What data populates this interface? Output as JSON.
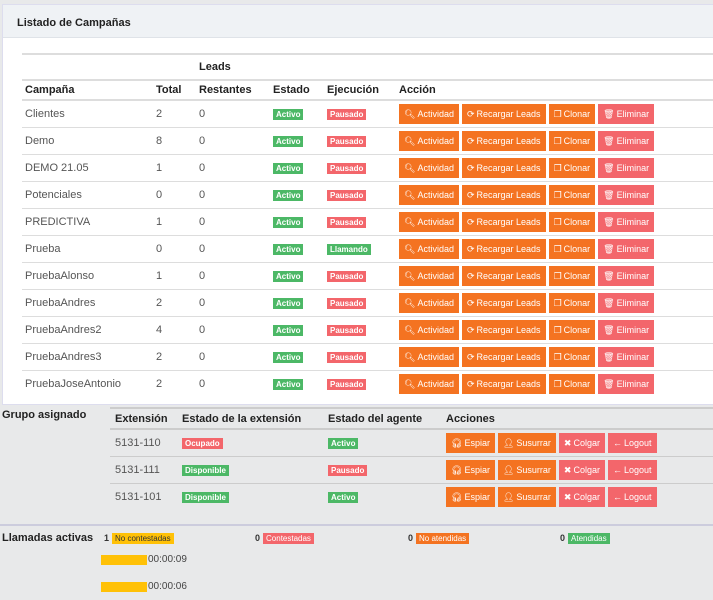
{
  "panel": {
    "title": "Listado de Campañas"
  },
  "campaigns": {
    "group_header": "Leads",
    "headers": [
      "Campaña",
      "Total",
      "Restantes",
      "Estado",
      "Ejecución",
      "Acción"
    ],
    "actions": [
      "Actividad",
      "Recargar Leads",
      "Clonar",
      "Eliminar"
    ],
    "rows": [
      {
        "name": "Clientes",
        "total": "2",
        "rest": "0",
        "estado": "Activo",
        "ejec": "Pausado"
      },
      {
        "name": "Demo",
        "total": "8",
        "rest": "0",
        "estado": "Activo",
        "ejec": "Pausado"
      },
      {
        "name": "DEMO 21.05",
        "total": "1",
        "rest": "0",
        "estado": "Activo",
        "ejec": "Pausado"
      },
      {
        "name": "Potenciales",
        "total": "0",
        "rest": "0",
        "estado": "Activo",
        "ejec": "Pausado"
      },
      {
        "name": "PREDICTIVA",
        "total": "1",
        "rest": "0",
        "estado": "Activo",
        "ejec": "Pausado"
      },
      {
        "name": "Prueba",
        "total": "0",
        "rest": "0",
        "estado": "Activo",
        "ejec": "Llamando"
      },
      {
        "name": "PruebaAlonso",
        "total": "1",
        "rest": "0",
        "estado": "Activo",
        "ejec": "Pausado"
      },
      {
        "name": "PruebaAndres",
        "total": "2",
        "rest": "0",
        "estado": "Activo",
        "ejec": "Pausado"
      },
      {
        "name": "PruebaAndres2",
        "total": "4",
        "rest": "0",
        "estado": "Activo",
        "ejec": "Pausado"
      },
      {
        "name": "PruebaAndres3",
        "total": "2",
        "rest": "0",
        "estado": "Activo",
        "ejec": "Pausado"
      },
      {
        "name": "PruebaJoseAntonio",
        "total": "2",
        "rest": "0",
        "estado": "Activo",
        "ejec": "Pausado"
      }
    ]
  },
  "group": {
    "label": "Grupo asignado",
    "headers": [
      "Extensión",
      "Estado de la extensión",
      "Estado del agente",
      "Acciones"
    ],
    "actions": [
      "Espiar",
      "Susurrar",
      "Colgar",
      "Logout"
    ],
    "rows": [
      {
        "ext": "5131-110",
        "ext_state": "Ocupado",
        "agent": "Activo"
      },
      {
        "ext": "5131-111",
        "ext_state": "Disponible",
        "agent": "Pausado"
      },
      {
        "ext": "5131-101",
        "ext_state": "Disponible",
        "agent": "Activo"
      }
    ]
  },
  "calls": {
    "label": "Llamadas activas",
    "counters": [
      {
        "count": "1",
        "label": "No contestadas",
        "color": "#ffc107"
      },
      {
        "count": "0",
        "label": "Contestadas",
        "color": "#f3666b"
      },
      {
        "count": "0",
        "label": "No atendidas",
        "color": "#f47321"
      },
      {
        "count": "0",
        "label": "Atendidas",
        "color": "#4cb866"
      }
    ],
    "timers": [
      "00:00:09",
      "00:00:06"
    ]
  },
  "colors": {
    "accent": "#f47321",
    "danger": "#f3666b",
    "success": "#4cb866",
    "warning": "#ffc107"
  }
}
